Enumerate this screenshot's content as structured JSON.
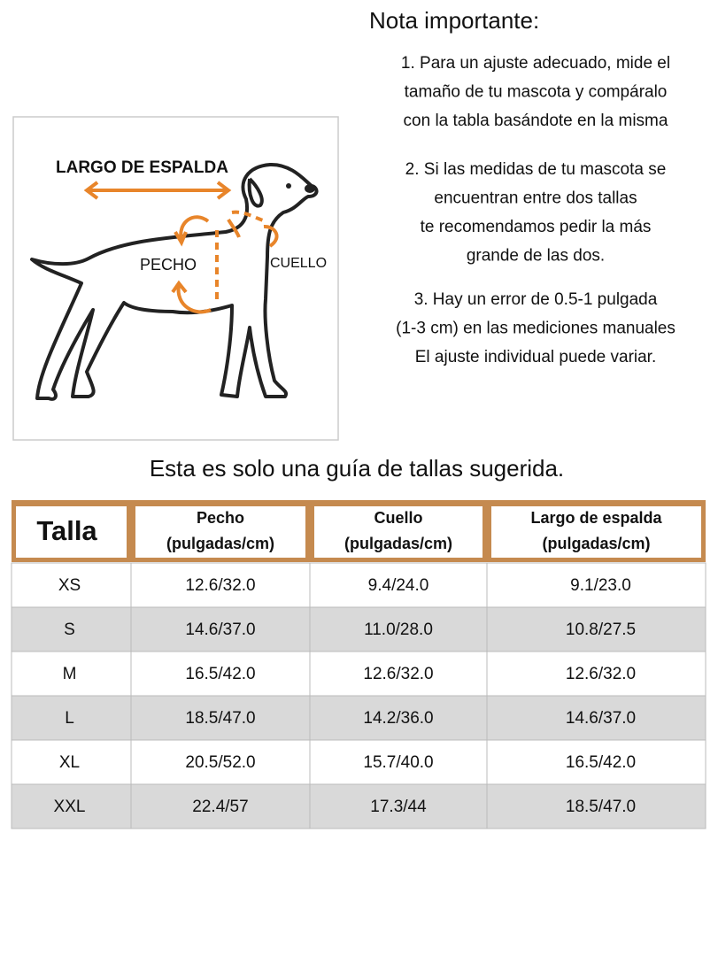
{
  "diagram": {
    "labels": {
      "back": "LARGO DE ESPALDA",
      "chest": "PECHO",
      "neck": "CUELLO"
    }
  },
  "notes": {
    "title": "Nota importante:",
    "items": [
      [
        "1. Para un ajuste adecuado, mide el",
        "tamaño de tu mascota y compáralo",
        "con la tabla basándote en la misma"
      ],
      [
        "2. Si las medidas de tu mascota se",
        "encuentran entre dos tallas",
        "te recomendamos pedir la más",
        "grande de las dos."
      ],
      [
        "3. Hay un error de 0.5-1 pulgada",
        "(1-3 cm) en las mediciones manuales",
        "El ajuste individual puede variar."
      ]
    ]
  },
  "subtitle": "Esta es solo una guía de tallas sugerida.",
  "table": {
    "header": [
      [
        "Talla"
      ],
      [
        "Pecho",
        "(pulgadas/cm)"
      ],
      [
        "Cuello",
        "(pulgadas/cm)"
      ],
      [
        "Largo de espalda",
        "(pulgadas/cm)"
      ]
    ],
    "rows": [
      [
        "XS",
        "12.6/32.0",
        "9.4/24.0",
        "9.1/23.0"
      ],
      [
        "S",
        "14.6/37.0",
        "11.0/28.0",
        "10.8/27.5"
      ],
      [
        "M",
        "16.5/42.0",
        "12.6/32.0",
        "12.6/32.0"
      ],
      [
        "L",
        "18.5/47.0",
        "14.2/36.0",
        "14.6/37.0"
      ],
      [
        "XL",
        "20.5/52.0",
        "15.7/40.0",
        "16.5/42.0"
      ],
      [
        "XXL",
        "22.4/57",
        "17.3/44",
        "18.5/47.0"
      ]
    ]
  }
}
